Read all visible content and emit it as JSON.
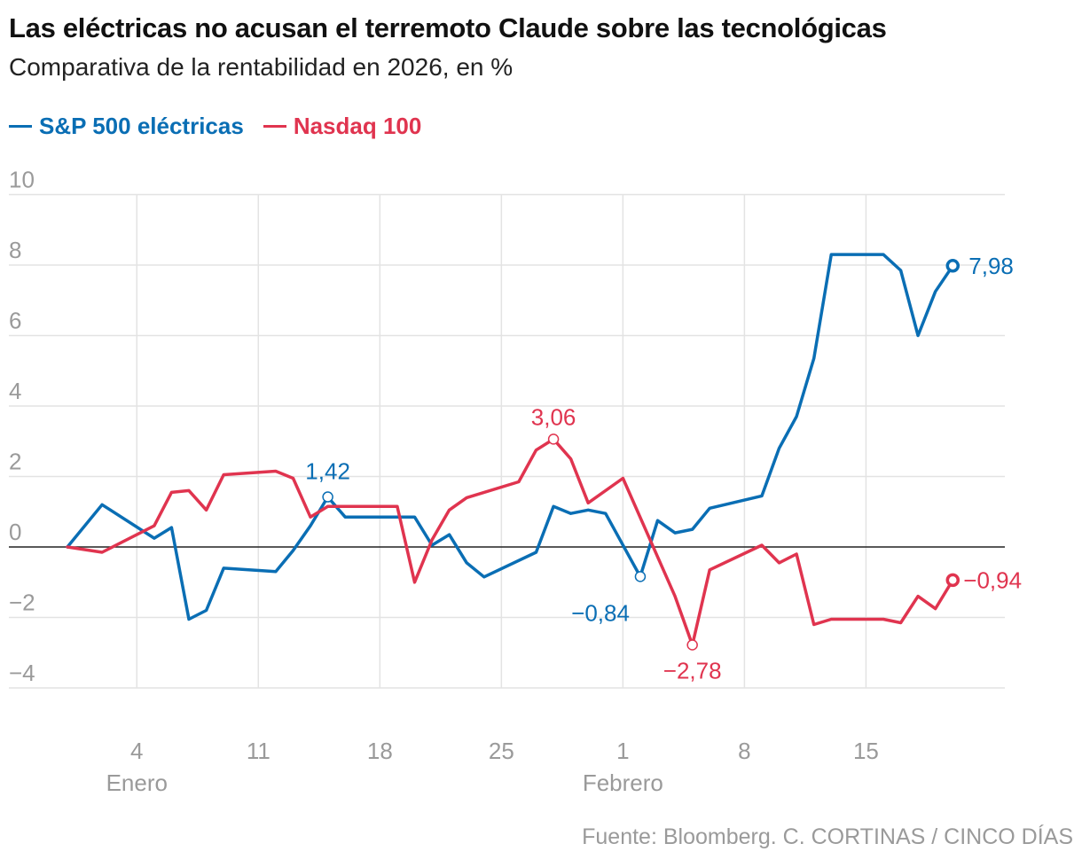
{
  "header": {
    "title": "Las eléctricas no acusan el terremoto Claude sobre las tecnológicas",
    "subtitle": "Comparativa de la rentabilidad en 2026, en %"
  },
  "legend": [
    {
      "label": "S&P 500 eléctricas",
      "color": "#0a6eb4"
    },
    {
      "label": "Nasdaq 100",
      "color": "#e0344f"
    }
  ],
  "source": "Fuente: Bloomberg. C. CORTINAS / CINCO DÍAS",
  "chart_data": {
    "type": "line",
    "x_unit": "date",
    "xlim": [
      "2025-12-31",
      "2026-02-23"
    ],
    "ylim": [
      -5,
      10
    ],
    "y_ticks": [
      10,
      8,
      6,
      4,
      2,
      0,
      -2,
      -4
    ],
    "y_tick_labels": [
      "10",
      "8",
      "6",
      "4",
      "2",
      "0",
      "−2",
      "−4"
    ],
    "x_ticks": [
      {
        "date": "2026-01-04",
        "label": "4",
        "month": "Enero"
      },
      {
        "date": "2026-01-11",
        "label": "11",
        "month": ""
      },
      {
        "date": "2026-01-18",
        "label": "18",
        "month": ""
      },
      {
        "date": "2026-01-25",
        "label": "25",
        "month": ""
      },
      {
        "date": "2026-02-01",
        "label": "1",
        "month": "Febrero"
      },
      {
        "date": "2026-02-08",
        "label": "8",
        "month": ""
      },
      {
        "date": "2026-02-15",
        "label": "15",
        "month": ""
      }
    ],
    "grid": true,
    "series": [
      {
        "name": "S&P 500 eléctricas",
        "color": "#0a6eb4",
        "points": [
          [
            "2025-12-31",
            0
          ],
          [
            "2026-01-02",
            1.2
          ],
          [
            "2026-01-05",
            0.25
          ],
          [
            "2026-01-06",
            0.55
          ],
          [
            "2026-01-07",
            -2.05
          ],
          [
            "2026-01-08",
            -1.8
          ],
          [
            "2026-01-09",
            -0.6
          ],
          [
            "2026-01-12",
            -0.7
          ],
          [
            "2026-01-13",
            -0.1
          ],
          [
            "2026-01-14",
            0.6
          ],
          [
            "2026-01-15",
            1.42
          ],
          [
            "2026-01-16",
            0.85
          ],
          [
            "2026-01-20",
            0.85
          ],
          [
            "2026-01-21",
            0.05
          ],
          [
            "2026-01-22",
            0.35
          ],
          [
            "2026-01-23",
            -0.45
          ],
          [
            "2026-01-24",
            -0.85
          ],
          [
            "2026-01-27",
            -0.15
          ],
          [
            "2026-01-28",
            1.15
          ],
          [
            "2026-01-29",
            0.95
          ],
          [
            "2026-01-30",
            1.05
          ],
          [
            "2026-01-31",
            0.95
          ],
          [
            "2026-02-02",
            -0.84
          ],
          [
            "2026-02-03",
            0.75
          ],
          [
            "2026-02-04",
            0.4
          ],
          [
            "2026-02-05",
            0.5
          ],
          [
            "2026-02-06",
            1.1
          ],
          [
            "2026-02-09",
            1.45
          ],
          [
            "2026-02-10",
            2.8
          ],
          [
            "2026-02-11",
            3.7
          ],
          [
            "2026-02-12",
            5.35
          ],
          [
            "2026-02-13",
            8.3
          ],
          [
            "2026-02-16",
            8.3
          ],
          [
            "2026-02-17",
            7.85
          ],
          [
            "2026-02-18",
            6.0
          ],
          [
            "2026-02-19",
            7.25
          ],
          [
            "2026-02-20",
            7.98
          ]
        ],
        "annotations": [
          {
            "date": "2026-01-15",
            "value": 1.42,
            "label": "1,42"
          },
          {
            "date": "2026-02-02",
            "value": -0.84,
            "label": "−0,84"
          },
          {
            "date": "2026-02-20",
            "value": 7.98,
            "label": "7,98",
            "end": true
          }
        ]
      },
      {
        "name": "Nasdaq 100",
        "color": "#e0344f",
        "points": [
          [
            "2025-12-31",
            0
          ],
          [
            "2026-01-02",
            -0.15
          ],
          [
            "2026-01-05",
            0.6
          ],
          [
            "2026-01-06",
            1.55
          ],
          [
            "2026-01-07",
            1.6
          ],
          [
            "2026-01-08",
            1.05
          ],
          [
            "2026-01-09",
            2.05
          ],
          [
            "2026-01-12",
            2.15
          ],
          [
            "2026-01-13",
            1.95
          ],
          [
            "2026-01-14",
            0.85
          ],
          [
            "2026-01-15",
            1.15
          ],
          [
            "2026-01-16",
            1.15
          ],
          [
            "2026-01-19",
            1.15
          ],
          [
            "2026-01-20",
            -1.0
          ],
          [
            "2026-01-21",
            0.2
          ],
          [
            "2026-01-22",
            1.05
          ],
          [
            "2026-01-23",
            1.4
          ],
          [
            "2026-01-26",
            1.85
          ],
          [
            "2026-01-27",
            2.75
          ],
          [
            "2026-01-28",
            3.06
          ],
          [
            "2026-01-29",
            2.5
          ],
          [
            "2026-01-30",
            1.25
          ],
          [
            "2026-02-01",
            1.95
          ],
          [
            "2026-02-04",
            -1.4
          ],
          [
            "2026-02-05",
            -2.78
          ],
          [
            "2026-02-06",
            -0.65
          ],
          [
            "2026-02-09",
            0.05
          ],
          [
            "2026-02-10",
            -0.45
          ],
          [
            "2026-02-11",
            -0.2
          ],
          [
            "2026-02-12",
            -2.2
          ],
          [
            "2026-02-13",
            -2.05
          ],
          [
            "2026-02-16",
            -2.05
          ],
          [
            "2026-02-17",
            -2.15
          ],
          [
            "2026-02-18",
            -1.4
          ],
          [
            "2026-02-19",
            -1.75
          ],
          [
            "2026-02-20",
            -0.94
          ]
        ],
        "annotations": [
          {
            "date": "2026-01-28",
            "value": 3.06,
            "label": "3,06"
          },
          {
            "date": "2026-02-05",
            "value": -2.78,
            "label": "−2,78"
          },
          {
            "date": "2026-02-20",
            "value": -0.94,
            "label": "−0,94",
            "end": true
          }
        ]
      }
    ]
  }
}
